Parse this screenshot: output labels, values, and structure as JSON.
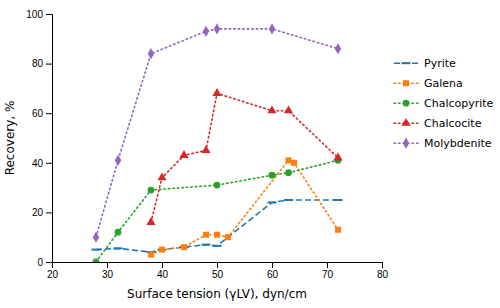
{
  "chart_data": {
    "type": "line",
    "xlabel": "Surface tension (γLV), dyn/cm",
    "ylabel": "Recovery, %",
    "xlim": [
      20,
      80
    ],
    "ylim": [
      0,
      100
    ],
    "xticks": [
      20,
      30,
      40,
      50,
      60,
      70,
      80
    ],
    "yticks": [
      0,
      20,
      40,
      60,
      80,
      100
    ],
    "grid": false,
    "legend": "right",
    "series": [
      {
        "name": "Pyrite",
        "marker": "hline",
        "line_style": "dashed",
        "x": [
          28,
          32,
          38,
          40,
          44,
          48,
          50,
          60,
          63,
          72
        ],
        "values": [
          5,
          5.5,
          4,
          5,
          6,
          7,
          6.5,
          24,
          25,
          25
        ]
      },
      {
        "name": "Galena",
        "marker": "square",
        "line_style": "dotted",
        "x": [
          38,
          40,
          44,
          48,
          50,
          52,
          63,
          64,
          72
        ],
        "values": [
          3,
          5,
          6,
          11,
          11,
          10,
          41,
          40,
          13
        ]
      },
      {
        "name": "Chalcopyrite",
        "marker": "circle",
        "line_style": "dotted",
        "x": [
          28,
          32,
          38,
          50,
          60,
          63,
          72
        ],
        "values": [
          0,
          12,
          29,
          31,
          35,
          36,
          41
        ]
      },
      {
        "name": "Chalcocite",
        "marker": "triangle",
        "line_style": "dotted",
        "x": [
          38,
          40,
          44,
          48,
          50,
          60,
          63,
          72
        ],
        "values": [
          16,
          34,
          43,
          45,
          68,
          61,
          61,
          42
        ]
      },
      {
        "name": "Molybdenite",
        "marker": "diamond",
        "line_style": "dotted",
        "x": [
          28,
          32,
          38,
          48,
          50,
          60,
          72
        ],
        "values": [
          10,
          41,
          84,
          93,
          94,
          94,
          86
        ]
      }
    ]
  }
}
